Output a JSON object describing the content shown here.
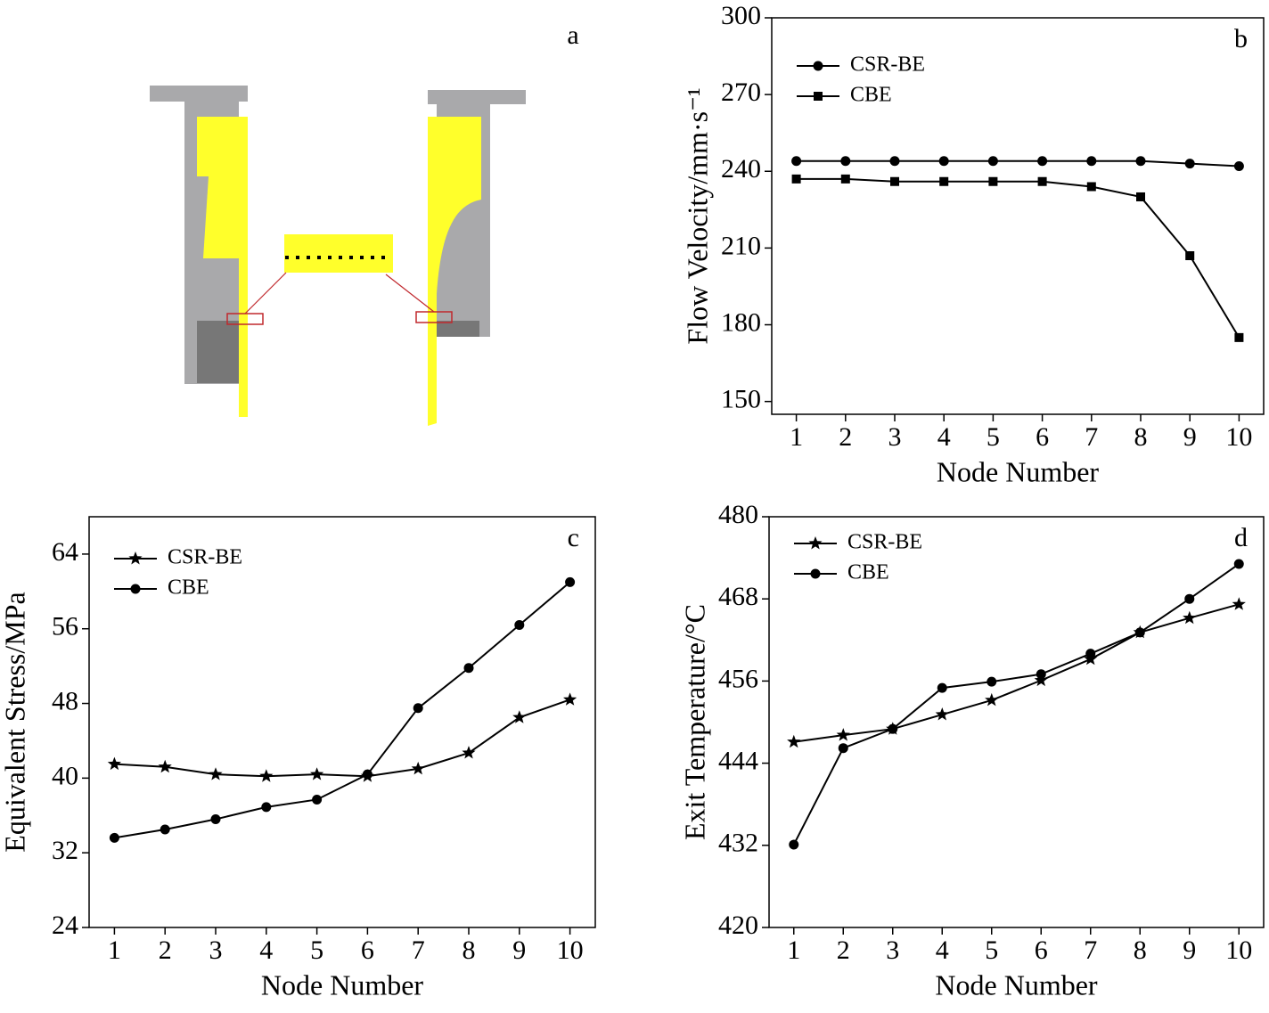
{
  "diagram": {
    "panel_label": "a"
  },
  "chart_data": [
    {
      "type": "line",
      "panel_label": "b",
      "xlabel": "Node Number",
      "ylabel": "Flow Velocity/mm·s⁻¹",
      "x": [
        1,
        2,
        3,
        4,
        5,
        6,
        7,
        8,
        9,
        10
      ],
      "xlim": [
        0.5,
        10.5
      ],
      "xticks": [
        1,
        2,
        3,
        4,
        5,
        6,
        7,
        8,
        9,
        10
      ],
      "ylim": [
        145,
        300
      ],
      "yticks": [
        150,
        180,
        210,
        240,
        270,
        300
      ],
      "legend": "upper left",
      "series": [
        {
          "name": "CSR-BE",
          "color": "#000000",
          "marker": "circle",
          "values": [
            244,
            244,
            244,
            244,
            244,
            244,
            244,
            244,
            243,
            242
          ]
        },
        {
          "name": "CBE",
          "color": "#000000",
          "marker": "square",
          "values": [
            237,
            237,
            236,
            236,
            236,
            236,
            234,
            230,
            207,
            175
          ]
        }
      ]
    },
    {
      "type": "line",
      "panel_label": "c",
      "xlabel": "Node Number",
      "ylabel": "Equivalent Stress/MPa",
      "x": [
        1,
        2,
        3,
        4,
        5,
        6,
        7,
        8,
        9,
        10
      ],
      "xlim": [
        0.5,
        10.5
      ],
      "xticks": [
        1,
        2,
        3,
        4,
        5,
        6,
        7,
        8,
        9,
        10
      ],
      "ylim": [
        24,
        68
      ],
      "yticks": [
        24,
        32,
        40,
        48,
        56,
        64
      ],
      "legend": "upper left",
      "series": [
        {
          "name": "CSR-BE",
          "color": "#000000",
          "marker": "star",
          "values": [
            41.5,
            41.2,
            40.4,
            40.2,
            40.4,
            40.2,
            41.0,
            42.7,
            46.5,
            48.4
          ]
        },
        {
          "name": "CBE",
          "color": "#000000",
          "marker": "circle",
          "values": [
            33.6,
            34.5,
            35.6,
            36.9,
            37.7,
            40.4,
            47.5,
            51.8,
            56.4,
            61.0
          ]
        }
      ]
    },
    {
      "type": "line",
      "panel_label": "d",
      "xlabel": "Node Number",
      "ylabel": "Exit Temperature/°C",
      "x": [
        1,
        2,
        3,
        4,
        5,
        6,
        7,
        8,
        9,
        10
      ],
      "xlim": [
        0.5,
        10.5
      ],
      "xticks": [
        1,
        2,
        3,
        4,
        5,
        6,
        7,
        8,
        9,
        10
      ],
      "ylim": [
        420,
        480
      ],
      "yticks": [
        420,
        432,
        444,
        456,
        468,
        480
      ],
      "legend": "upper left",
      "series": [
        {
          "name": "CSR-BE",
          "color": "#000000",
          "marker": "star",
          "values": [
            447.1,
            448.1,
            449.0,
            451.1,
            453.2,
            456.1,
            459.2,
            463.1,
            465.2,
            467.2
          ]
        },
        {
          "name": "CBE",
          "color": "#000000",
          "marker": "circle",
          "values": [
            432.1,
            446.2,
            449.0,
            455.0,
            455.9,
            457.0,
            460.0,
            463.1,
            468.0,
            473.1
          ]
        }
      ]
    }
  ]
}
